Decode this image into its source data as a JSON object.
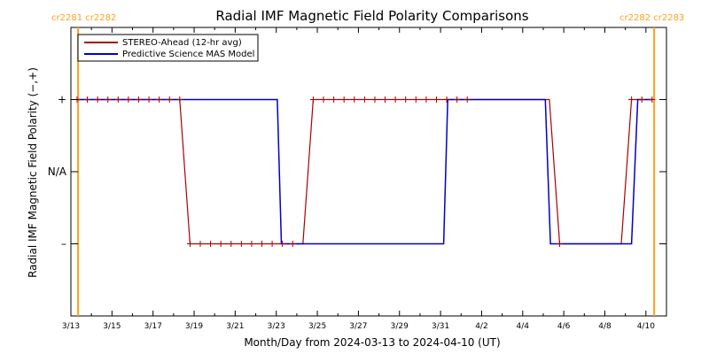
{
  "chart_data": {
    "type": "line",
    "title": "Radial IMF Magnetic Field Polarity Comparisons",
    "xlabel": "Month/Day from 2024-03-13 to 2024-04-10 (UT)",
    "ylabel": "Radial IMF Magnetic Field Polarity (−,+)",
    "x_tick_labels": [
      "3/13",
      "3/15",
      "3/17",
      "3/19",
      "3/21",
      "3/23",
      "3/25",
      "3/27",
      "3/29",
      "3/31",
      "4/2",
      "4/4",
      "4/6",
      "4/8",
      "4/10"
    ],
    "x_tick_values": [
      0,
      2,
      4,
      6,
      8,
      10,
      12,
      14,
      16,
      18,
      20,
      22,
      24,
      26,
      28
    ],
    "xlim": [
      0,
      29
    ],
    "y_tick_labels": [
      "+",
      "N/A",
      "–"
    ],
    "y_tick_values": [
      1,
      0,
      -1
    ],
    "ylim": [
      -2,
      2
    ],
    "carrington_markers": [
      {
        "x": 0.35,
        "label": "cr2281 cr2282"
      },
      {
        "x": 28.4,
        "label": "cr2282 cr2283"
      }
    ],
    "marker_color": "#ff9f1c",
    "series": [
      {
        "name": "STEREO-Ahead (12-hr avg)",
        "color": "#aa0000",
        "marker": "plus",
        "x": [
          0.3,
          0.8,
          1.3,
          1.8,
          2.3,
          2.8,
          3.3,
          3.8,
          4.3,
          4.8,
          5.3,
          5.8,
          6.3,
          6.8,
          7.3,
          7.8,
          8.3,
          8.8,
          9.3,
          9.8,
          10.3,
          10.8,
          11.3,
          11.8,
          12.3,
          12.8,
          13.3,
          13.8,
          14.3,
          14.8,
          15.3,
          15.8,
          16.3,
          16.8,
          17.3,
          17.8,
          18.3,
          18.8,
          19.3,
          19.8,
          20.3,
          20.8,
          21.3,
          21.8,
          22.3,
          22.8,
          23.3,
          23.8,
          24.3,
          24.8,
          25.3,
          25.8,
          26.3,
          26.8,
          27.3,
          27.8,
          28.3
        ],
        "y": [
          1,
          1,
          1,
          1,
          1,
          1,
          1,
          1,
          1,
          1,
          1,
          -1,
          -1,
          -1,
          -1,
          -1,
          -1,
          -1,
          -1,
          -1,
          -1,
          -1,
          -1,
          1,
          1,
          1,
          1,
          1,
          1,
          1,
          1,
          1,
          1,
          1,
          1,
          1,
          1,
          1,
          1,
          1,
          1,
          1,
          1,
          1,
          1,
          1,
          1,
          -1,
          -1,
          -1,
          -1,
          -1,
          -1,
          -1,
          1,
          1,
          1
        ],
        "plot_markers": [
          0,
          1,
          2,
          3,
          4,
          5,
          6,
          7,
          8,
          9,
          10,
          11,
          12,
          13,
          14,
          15,
          16,
          17,
          18,
          19,
          20,
          21,
          23,
          24,
          25,
          26,
          27,
          28,
          29,
          30,
          31,
          32,
          33,
          34,
          35,
          36,
          37,
          38,
          47,
          54,
          55,
          56
        ]
      },
      {
        "name": "Predictive Science MAS Model",
        "color": "#0000cc",
        "x": [
          0.35,
          10.05,
          10.25,
          18.15,
          18.35,
          23.1,
          23.35,
          27.3,
          27.6,
          28.35
        ],
        "y": [
          1,
          1,
          -1,
          -1,
          1,
          1,
          -1,
          -1,
          1,
          1
        ]
      }
    ],
    "grid": false,
    "legend_position": "top-left"
  }
}
